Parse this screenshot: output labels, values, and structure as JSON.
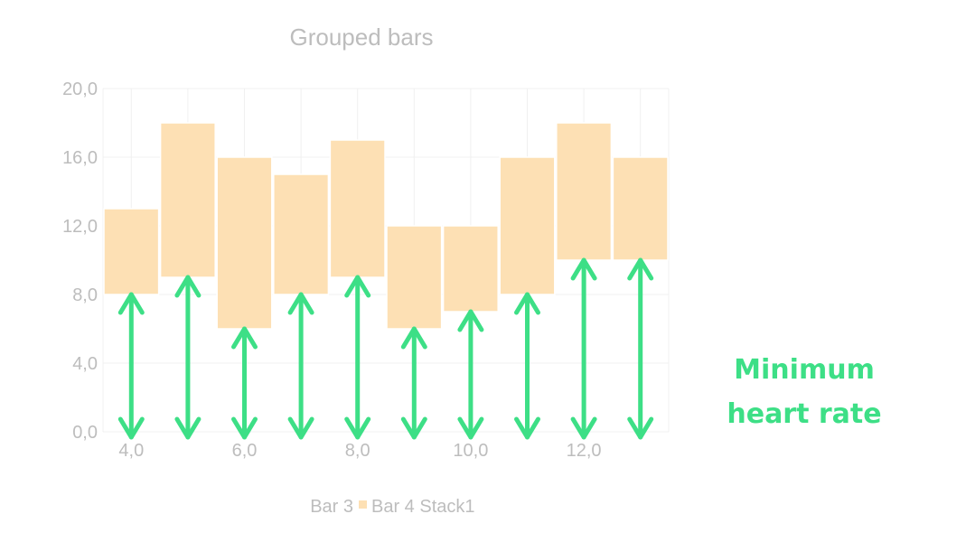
{
  "chart_data": {
    "type": "bar",
    "title": "Grouped bars",
    "x": [
      4,
      5,
      6,
      7,
      8,
      9,
      10,
      11,
      12,
      13
    ],
    "series": [
      {
        "name": "Bar 4 Stack1",
        "low": [
          8,
          9,
          6,
          8,
          9,
          6,
          7,
          8,
          10,
          10
        ],
        "high": [
          13,
          18,
          16,
          15,
          17,
          12,
          12,
          16,
          18,
          16
        ],
        "color": "#fde0b4"
      }
    ],
    "legend": [
      "Bar 3",
      "Bar 4 Stack1"
    ],
    "legend_placement": "bottom",
    "x_ticks": [
      "4,0",
      "6,0",
      "8,0",
      "10,0",
      "12,0"
    ],
    "x_tick_values": [
      4,
      6,
      8,
      10,
      12
    ],
    "y_ticks": [
      "0,0",
      "4,0",
      "8,0",
      "12,0",
      "16,0",
      "20,0"
    ],
    "y_tick_values": [
      0,
      4,
      8,
      12,
      16,
      20
    ],
    "xlim": [
      3.5,
      13.5
    ],
    "ylim": [
      0,
      20
    ],
    "grid": true,
    "annotation": {
      "lines": [
        "Minimum",
        "heart rate"
      ],
      "color": "#3ddf86"
    }
  }
}
